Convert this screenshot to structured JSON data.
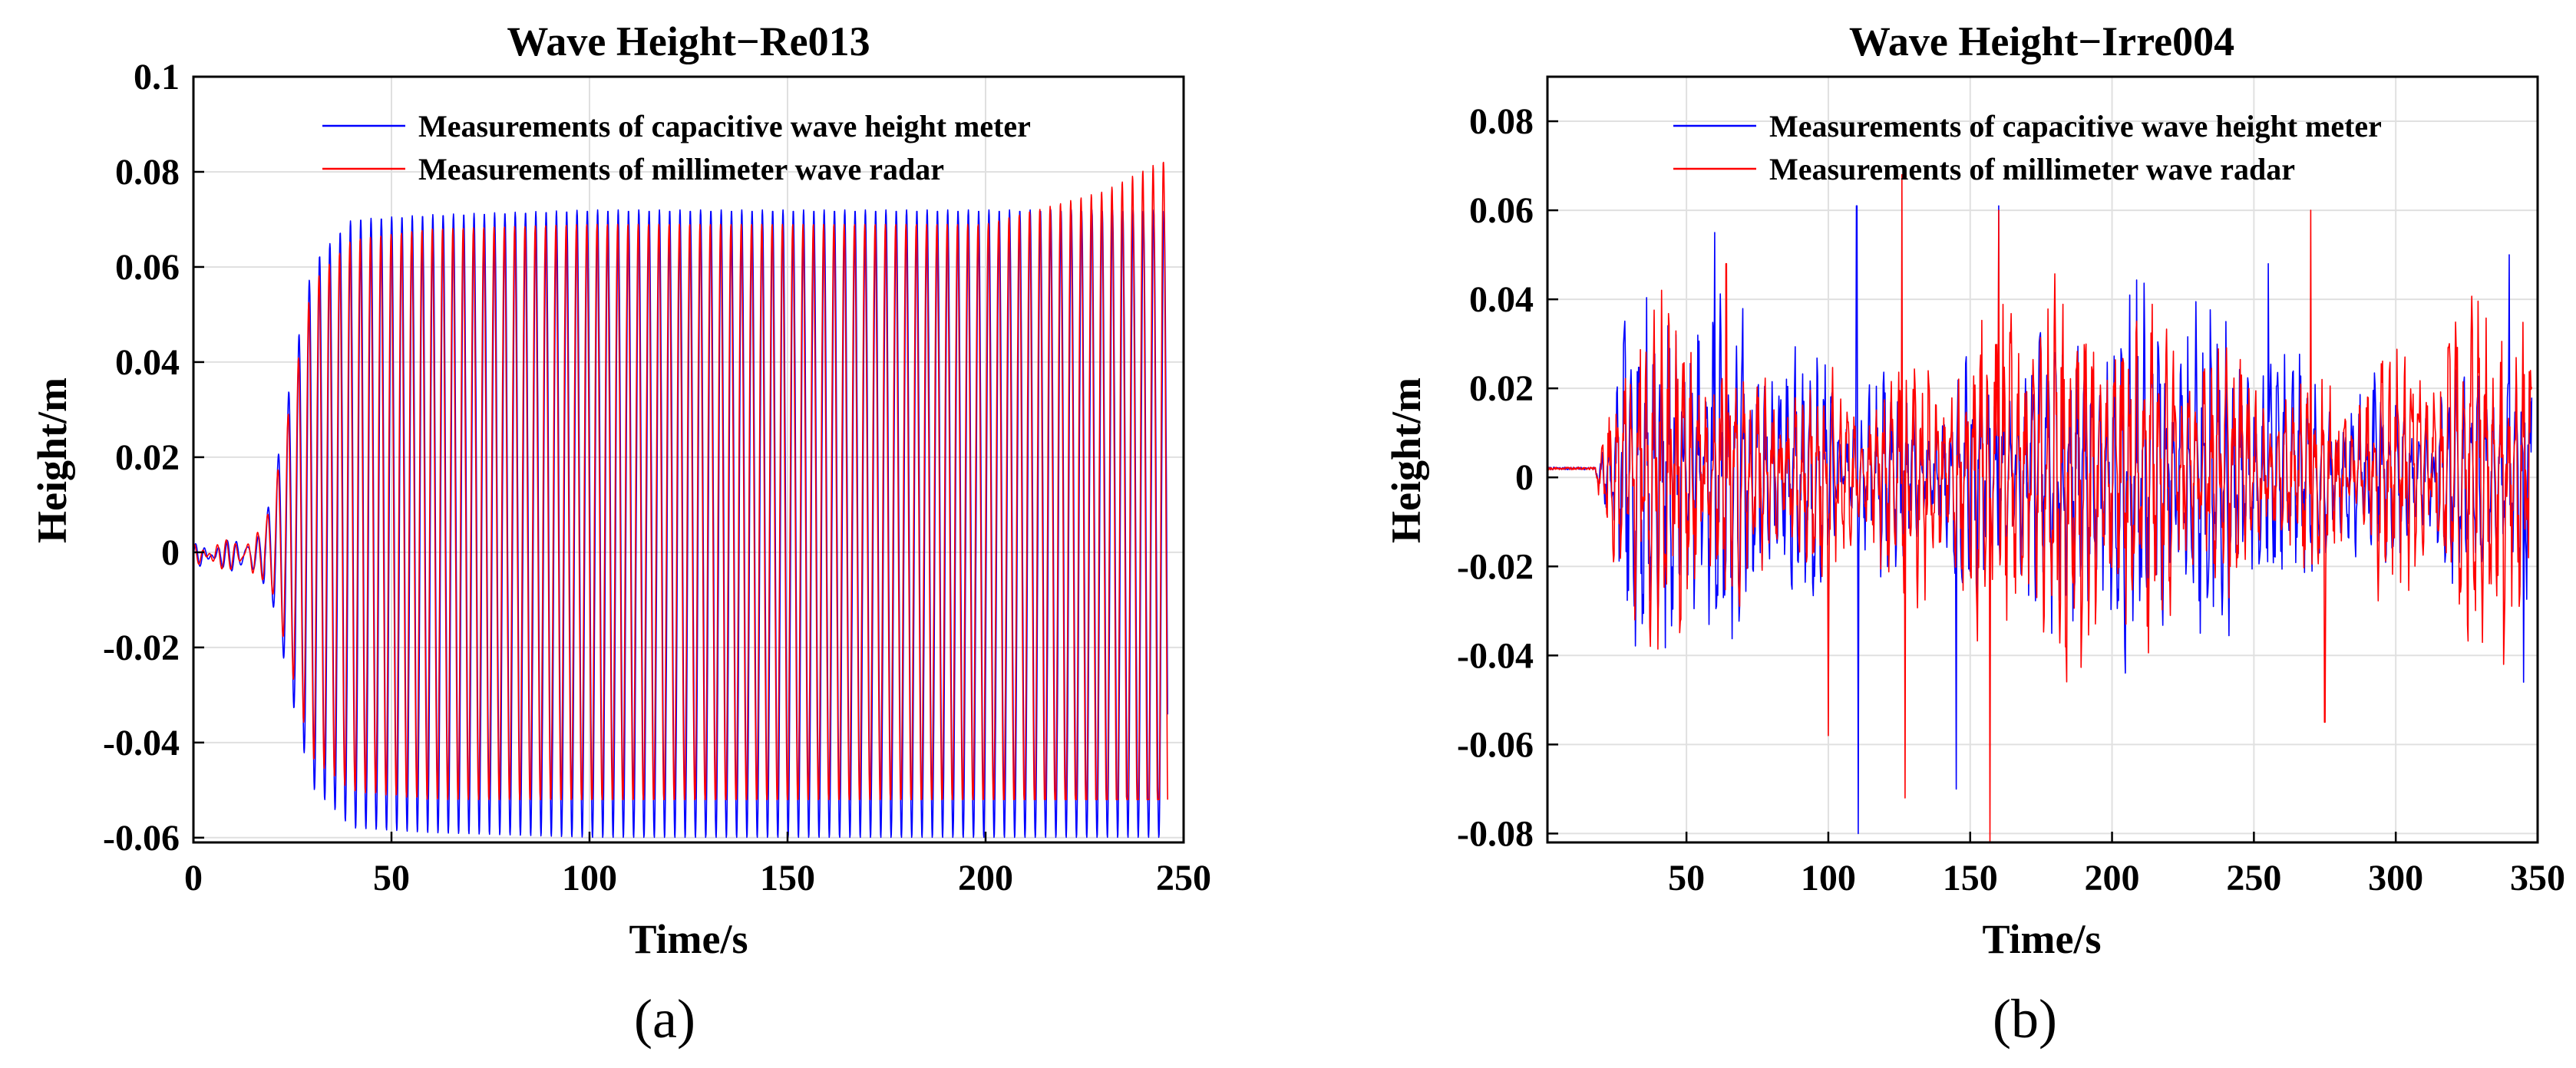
{
  "figure_panels": [
    "(a)",
    "(b)"
  ],
  "colors": {
    "capacitive": "#0000FF",
    "radar": "#FF0000",
    "grid": "#E0E0E0"
  },
  "chart_data": [
    {
      "type": "line",
      "title": "Wave Height−Re013",
      "xlabel": "Time/s",
      "ylabel": "Height/m",
      "xlim": [
        0,
        250
      ],
      "ylim": [
        -0.061,
        0.1
      ],
      "xticks": [
        0,
        50,
        100,
        150,
        200,
        250
      ],
      "xtick_labels": [
        "0",
        "50",
        "100",
        "150",
        "200",
        "250"
      ],
      "yticks": [
        -0.06,
        -0.04,
        -0.02,
        0,
        0.02,
        0.04,
        0.06,
        0.08,
        0.1
      ],
      "ytick_labels": [
        "-0.06",
        "-0.04",
        "-0.02",
        "0",
        "0.02",
        "0.04",
        "0.06",
        "0.08",
        "0.1"
      ],
      "grid": true,
      "legend_position": "top-right",
      "series": [
        {
          "name": "Measurements of capacitive wave height meter",
          "color": "#0000FF",
          "signal": "regular",
          "period": 2.6,
          "phase": 0,
          "envelope": {
            "t": [
              0,
              12,
              15,
              17,
              20,
              25,
              30,
              40,
              60,
              100,
              150,
              200,
              246
            ],
            "amp": [
              0.001,
              0.002,
              0.004,
              0.003,
              0.012,
              0.035,
              0.055,
              0.064,
              0.065,
              0.066,
              0.066,
              0.066,
              0.066
            ]
          },
          "offset": 0.006,
          "clamp": [
            -0.06,
            0.073
          ]
        },
        {
          "name": "Measurements of millimeter wave radar",
          "color": "#FF0000",
          "signal": "regular",
          "period": 2.6,
          "phase": 0.35,
          "envelope": {
            "t": [
              0,
              12,
              15,
              17,
              20,
              25,
              30,
              40,
              60,
              100,
              150,
              200,
              230,
              246
            ],
            "amp": [
              0.001,
              0.002,
              0.004,
              0.003,
              0.01,
              0.03,
              0.05,
              0.058,
              0.06,
              0.061,
              0.061,
              0.061,
              0.068,
              0.075
            ]
          },
          "offset": 0.008,
          "clamp": [
            -0.052,
            0.082
          ]
        }
      ]
    },
    {
      "type": "line",
      "title": "Wave Height−Irre004",
      "xlabel": "Time/s",
      "ylabel": "Height/m",
      "xlim": [
        1,
        350
      ],
      "ylim": [
        -0.082,
        0.09
      ],
      "xticks": [
        50,
        100,
        150,
        200,
        250,
        300,
        350
      ],
      "xtick_labels": [
        "50",
        "100",
        "150",
        "200",
        "250",
        "300",
        "350"
      ],
      "yticks": [
        -0.08,
        -0.06,
        -0.04,
        -0.02,
        0,
        0.02,
        0.04,
        0.06,
        0.08
      ],
      "ytick_labels": [
        "-0.08",
        "-0.06",
        "-0.04",
        "-0.02",
        "0",
        "0.02",
        "0.04",
        "0.06",
        "0.08"
      ],
      "grid": true,
      "legend_position": "top-right",
      "series": [
        {
          "name": "Measurements of capacitive wave height meter",
          "color": "#0000FF",
          "signal": "irregular",
          "seed": 7,
          "start": 18,
          "baseline": 0.002,
          "amp": 0.026,
          "peaks": [
            [
              60,
              0.055
            ],
            [
              110,
              0.061
            ],
            [
              110.5,
              -0.08
            ],
            [
              145,
              -0.07
            ],
            [
              160,
              0.061
            ],
            [
              255,
              0.048
            ],
            [
              340,
              0.05
            ],
            [
              345,
              -0.046
            ]
          ],
          "clamp": [
            -0.08,
            0.061
          ]
        },
        {
          "name": "Measurements of millimeter wave radar",
          "color": "#FF0000",
          "signal": "irregular",
          "seed": 19,
          "start": 18,
          "baseline": 0.002,
          "amp": 0.028,
          "peaks": [
            [
              64,
              0.048
            ],
            [
              100,
              -0.058
            ],
            [
              126,
              0.068
            ],
            [
              127,
              -0.072
            ],
            [
              157,
              -0.082
            ],
            [
              160,
              0.06
            ],
            [
              270,
              0.06
            ],
            [
              275,
              -0.055
            ],
            [
              338,
              -0.042
            ]
          ],
          "clamp": [
            -0.082,
            0.068
          ]
        }
      ]
    }
  ]
}
